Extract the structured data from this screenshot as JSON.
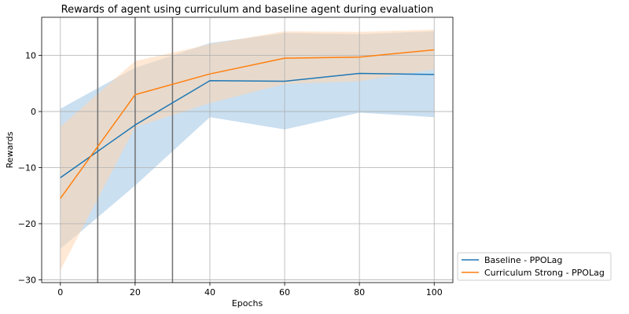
{
  "chart_data": {
    "type": "line",
    "title": "Rewards of agent using curriculum and baseline agent during evaluation",
    "xlabel": "Epochs",
    "ylabel": "Rewards",
    "xlim": [
      -5,
      105
    ],
    "ylim": [
      -30.5,
      16.8
    ],
    "xticks": [
      0,
      20,
      40,
      60,
      80,
      100
    ],
    "yticks": [
      -30,
      -20,
      -10,
      0,
      10
    ],
    "ytick_labels": [
      "−30",
      "−20",
      "−10",
      "0",
      "10"
    ],
    "grid": true,
    "legend_position": "outside-lower-right",
    "vertical_lines": [
      10,
      20,
      30
    ],
    "x": [
      0,
      20,
      40,
      60,
      80,
      100
    ],
    "series": [
      {
        "name": "Baseline - PPOLag",
        "color": "#1f77b4",
        "fill_color": "#a6c9e6",
        "values": [
          -11.8,
          -2.4,
          5.5,
          5.4,
          6.8,
          6.6
        ],
        "upper": [
          0.5,
          7.8,
          12.2,
          14.0,
          13.8,
          14.3
        ],
        "lower": [
          -24.5,
          -13.2,
          -1.0,
          -3.2,
          -0.2,
          -1.0
        ]
      },
      {
        "name": "Curriculum Strong - PPOLag",
        "color": "#ff7f0e",
        "fill_color": "#ffd5b0",
        "values": [
          -15.5,
          3.0,
          6.7,
          9.5,
          9.7,
          11.0
        ],
        "upper": [
          -2.7,
          9.0,
          12.0,
          14.3,
          14.2,
          14.6
        ],
        "lower": [
          -28.3,
          -2.8,
          1.5,
          4.9,
          5.4,
          7.5
        ]
      }
    ]
  }
}
